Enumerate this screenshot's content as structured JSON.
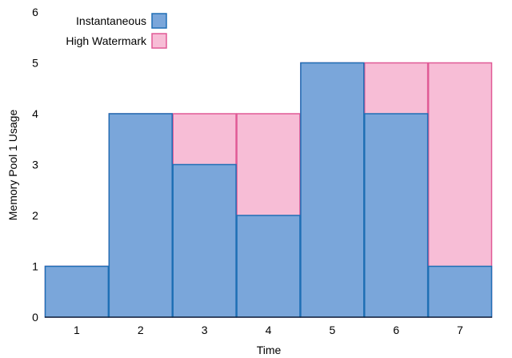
{
  "chart_data": {
    "type": "bar",
    "title": "",
    "xlabel": "Time",
    "ylabel": "Memory Pool 1 Usage",
    "categories": [
      "1",
      "2",
      "3",
      "4",
      "5",
      "6",
      "7"
    ],
    "ylim": [
      0,
      6
    ],
    "yticks": [
      "0",
      "1",
      "2",
      "3",
      "4",
      "5",
      "6"
    ],
    "grid": false,
    "legend_position": "top-left",
    "series": [
      {
        "name": "High Watermark",
        "values": [
          1,
          4,
          4,
          4,
          5,
          5,
          5
        ],
        "fill": "#f7bdd6",
        "stroke": "#e05a96"
      },
      {
        "name": "Instantaneous",
        "values": [
          1,
          4,
          3,
          2,
          5,
          4,
          1
        ],
        "fill": "#7aa6da",
        "stroke": "#1f6fb5"
      }
    ],
    "legend": [
      {
        "label": "Instantaneous",
        "fill": "#7aa6da",
        "stroke": "#1f6fb5"
      },
      {
        "label": "High Watermark",
        "fill": "#f7bdd6",
        "stroke": "#e05a96"
      }
    ]
  }
}
